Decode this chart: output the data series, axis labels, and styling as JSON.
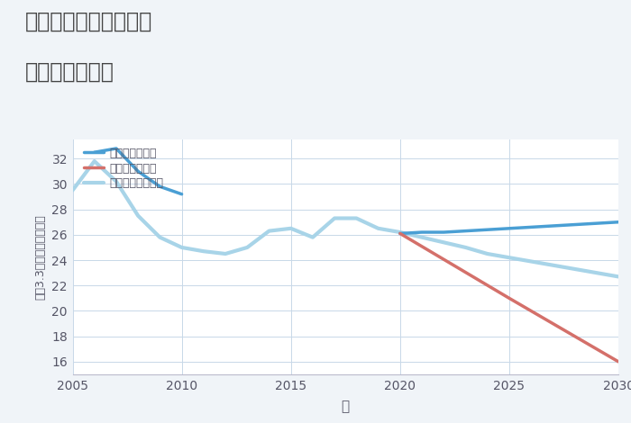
{
  "title_line1": "愛知県津島市牛田町の",
  "title_line2": "土地の価格推移",
  "xlabel": "年",
  "ylabel": "坪（3.3㎡）単価（万円）",
  "background_color": "#f0f4f8",
  "plot_background": "#ffffff",
  "grid_color": "#c8d8e8",
  "good_scenario": {
    "label": "グッドシナリオ",
    "color": "#4a9fd4",
    "x_hist": [
      2006,
      2007,
      2008,
      2009,
      2010
    ],
    "y_hist": [
      32.5,
      32.8,
      31.0,
      29.8,
      29.2
    ],
    "x_fut": [
      2020,
      2021,
      2022,
      2023,
      2024,
      2025,
      2026,
      2027,
      2028,
      2029,
      2030
    ],
    "y_fut": [
      26.1,
      26.2,
      26.2,
      26.3,
      26.4,
      26.5,
      26.6,
      26.7,
      26.8,
      26.9,
      27.0
    ]
  },
  "bad_scenario": {
    "label": "バッドシナリオ",
    "color": "#d4706a",
    "x": [
      2020,
      2025,
      2030
    ],
    "y": [
      26.1,
      21.0,
      16.0
    ]
  },
  "normal_scenario": {
    "label": "ノーマルシナリオ",
    "color": "#a8d4e8",
    "x": [
      2005,
      2006,
      2007,
      2008,
      2009,
      2010,
      2011,
      2012,
      2013,
      2014,
      2015,
      2016,
      2017,
      2018,
      2019,
      2020,
      2021,
      2022,
      2023,
      2024,
      2025,
      2026,
      2027,
      2028,
      2029,
      2030
    ],
    "y": [
      29.5,
      31.8,
      30.2,
      27.5,
      25.8,
      25.0,
      24.7,
      24.5,
      25.0,
      26.3,
      26.5,
      25.8,
      27.3,
      27.3,
      26.5,
      26.2,
      25.8,
      25.4,
      25.0,
      24.5,
      24.2,
      23.9,
      23.6,
      23.3,
      23.0,
      22.7
    ]
  },
  "ylim": [
    15,
    33.5
  ],
  "xlim": [
    2005,
    2030
  ],
  "yticks": [
    16,
    18,
    20,
    22,
    24,
    26,
    28,
    30,
    32
  ],
  "xticks": [
    2005,
    2010,
    2015,
    2020,
    2025,
    2030
  ],
  "title_color": "#444444",
  "tick_color": "#555566",
  "label_color": "#555566"
}
